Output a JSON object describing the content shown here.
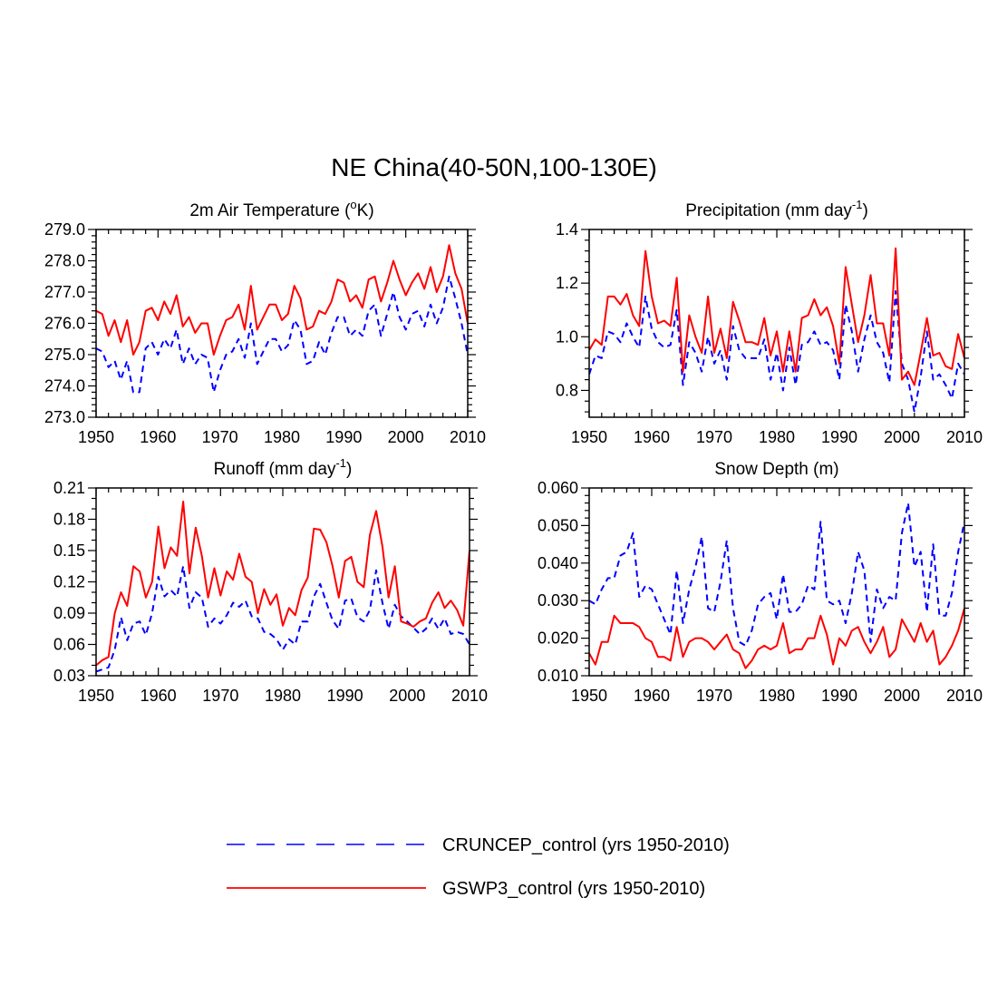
{
  "title": "NE China(40-50N,100-130E)",
  "colors": {
    "cruncep": "#0000ff",
    "gswp3": "#ff0000",
    "axis": "#000000"
  },
  "legend": [
    {
      "label": "CRUNCEP_control (yrs 1950-2010)",
      "color": "#0000ff",
      "dash": true
    },
    {
      "label": "GSWP3_control (yrs 1950-2010)",
      "color": "#ff0000",
      "dash": false
    }
  ],
  "chart_data": [
    {
      "type": "line",
      "title": {
        "main": "2m Air Temperature (",
        "sup": "o",
        "rest": "K)"
      },
      "xlim": [
        1950,
        2010
      ],
      "ylim": [
        273.0,
        279.0
      ],
      "xticks": [
        "1950",
        "1960",
        "1970",
        "1980",
        "1990",
        "2000",
        "2010"
      ],
      "yticks": [
        "273.0",
        "274.0",
        "275.0",
        "276.0",
        "277.0",
        "278.0",
        "279.0"
      ],
      "x_start": 1950,
      "series": [
        {
          "name": "CRUNCEP_control",
          "values": [
            275.2,
            275.1,
            274.6,
            274.8,
            274.2,
            274.8,
            273.8,
            273.8,
            275.2,
            275.4,
            275.0,
            275.5,
            275.2,
            275.8,
            274.7,
            275.2,
            274.7,
            275.0,
            274.9,
            273.8,
            274.5,
            275.0,
            275.1,
            275.5,
            274.9,
            276.0,
            274.7,
            275.1,
            275.5,
            275.5,
            275.1,
            275.3,
            276.1,
            275.8,
            274.7,
            274.8,
            275.4,
            275.0,
            275.7,
            276.2,
            276.2,
            275.6,
            275.8,
            275.6,
            276.4,
            276.6,
            275.6,
            276.3,
            277.0,
            276.2,
            275.8,
            276.3,
            276.4,
            275.9,
            276.6,
            276.0,
            276.5,
            277.5,
            276.8,
            276.0,
            275.0
          ]
        },
        {
          "name": "GSWP3_control",
          "values": [
            276.4,
            276.3,
            275.6,
            276.1,
            275.4,
            276.1,
            275.0,
            275.4,
            276.4,
            276.5,
            276.1,
            276.7,
            276.3,
            276.9,
            275.9,
            276.2,
            275.7,
            276.0,
            276.0,
            275.0,
            275.6,
            276.1,
            276.2,
            276.6,
            275.8,
            277.2,
            275.8,
            276.2,
            276.6,
            276.6,
            276.1,
            276.3,
            277.2,
            276.8,
            275.8,
            275.9,
            276.4,
            276.3,
            276.7,
            277.4,
            277.3,
            276.7,
            276.9,
            276.5,
            277.4,
            277.5,
            276.7,
            277.3,
            278.0,
            277.4,
            276.9,
            277.3,
            277.6,
            277.1,
            277.8,
            277.0,
            277.5,
            278.5,
            277.6,
            277.1,
            276.0
          ]
        }
      ]
    },
    {
      "type": "line",
      "title": {
        "main": "Precipitation (mm day",
        "sup": "-1",
        "rest": ")"
      },
      "xlim": [
        1950,
        2010
      ],
      "ylim": [
        0.7,
        1.4
      ],
      "xticks": [
        "1950",
        "1960",
        "1970",
        "1980",
        "1990",
        "2000",
        "2010"
      ],
      "yticks": [
        "0.8",
        "1.0",
        "1.2",
        "1.4"
      ],
      "x_start": 1950,
      "series": [
        {
          "name": "CRUNCEP_control",
          "values": [
            0.86,
            0.93,
            0.92,
            1.02,
            1.01,
            0.98,
            1.05,
            1.0,
            0.96,
            1.15,
            1.03,
            0.98,
            0.96,
            0.97,
            1.1,
            0.82,
            0.98,
            0.94,
            0.87,
            1.0,
            0.9,
            0.95,
            0.84,
            1.04,
            0.95,
            0.92,
            0.92,
            0.92,
            0.99,
            0.84,
            0.94,
            0.8,
            0.96,
            0.82,
            0.97,
            0.98,
            1.02,
            0.97,
            0.98,
            0.95,
            0.84,
            1.12,
            1.02,
            0.87,
            0.99,
            1.08,
            0.98,
            0.94,
            0.83,
            1.17,
            0.9,
            0.84,
            0.72,
            0.85,
            1.02,
            0.84,
            0.86,
            0.82,
            0.77,
            0.9,
            0.86
          ]
        },
        {
          "name": "GSWP3_control",
          "values": [
            0.95,
            0.99,
            0.97,
            1.15,
            1.15,
            1.12,
            1.16,
            1.08,
            1.04,
            1.32,
            1.15,
            1.05,
            1.06,
            1.04,
            1.22,
            0.87,
            1.08,
            1.0,
            0.94,
            1.15,
            0.94,
            1.03,
            0.92,
            1.13,
            1.06,
            0.98,
            0.98,
            0.97,
            1.07,
            0.93,
            1.02,
            0.87,
            1.02,
            0.87,
            1.07,
            1.08,
            1.14,
            1.08,
            1.11,
            1.04,
            0.9,
            1.26,
            1.12,
            0.98,
            1.08,
            1.23,
            1.05,
            1.05,
            0.93,
            1.33,
            0.84,
            0.87,
            0.82,
            0.94,
            1.07,
            0.93,
            0.94,
            0.89,
            0.88,
            1.01,
            0.92
          ]
        }
      ]
    },
    {
      "type": "line",
      "title": {
        "main": "Runoff (mm day",
        "sup": "-1",
        "rest": ")"
      },
      "xlim": [
        1950,
        2010
      ],
      "ylim": [
        0.03,
        0.21
      ],
      "xticks": [
        "1950",
        "1960",
        "1970",
        "1980",
        "1990",
        "2000",
        "2010"
      ],
      "yticks": [
        "0.03",
        "0.06",
        "0.09",
        "0.12",
        "0.15",
        "0.18",
        "0.21"
      ],
      "x_start": 1950,
      "series": [
        {
          "name": "CRUNCEP_control",
          "values": [
            0.034,
            0.036,
            0.038,
            0.055,
            0.086,
            0.064,
            0.08,
            0.082,
            0.069,
            0.09,
            0.125,
            0.106,
            0.112,
            0.106,
            0.135,
            0.095,
            0.11,
            0.105,
            0.077,
            0.085,
            0.08,
            0.088,
            0.1,
            0.096,
            0.102,
            0.087,
            0.085,
            0.072,
            0.07,
            0.065,
            0.055,
            0.065,
            0.06,
            0.082,
            0.082,
            0.106,
            0.118,
            0.1,
            0.083,
            0.075,
            0.102,
            0.104,
            0.086,
            0.082,
            0.093,
            0.131,
            0.1,
            0.075,
            0.098,
            0.087,
            0.082,
            0.076,
            0.07,
            0.075,
            0.085,
            0.075,
            0.085,
            0.07,
            0.072,
            0.07,
            0.06
          ]
        },
        {
          "name": "GSWP3_control",
          "values": [
            0.04,
            0.045,
            0.048,
            0.09,
            0.11,
            0.097,
            0.135,
            0.13,
            0.105,
            0.12,
            0.173,
            0.133,
            0.153,
            0.145,
            0.197,
            0.128,
            0.172,
            0.145,
            0.105,
            0.133,
            0.107,
            0.13,
            0.122,
            0.147,
            0.125,
            0.12,
            0.09,
            0.113,
            0.098,
            0.108,
            0.078,
            0.095,
            0.088,
            0.112,
            0.124,
            0.171,
            0.17,
            0.158,
            0.135,
            0.105,
            0.14,
            0.144,
            0.12,
            0.115,
            0.165,
            0.188,
            0.154,
            0.105,
            0.135,
            0.082,
            0.08,
            0.077,
            0.082,
            0.085,
            0.1,
            0.11,
            0.095,
            0.102,
            0.093,
            0.078,
            0.15
          ]
        }
      ]
    },
    {
      "type": "line",
      "title": {
        "main": "Snow Depth (m)",
        "sup": "",
        "rest": ""
      },
      "xlim": [
        1950,
        2010
      ],
      "ylim": [
        0.01,
        0.06
      ],
      "xticks": [
        "1950",
        "1960",
        "1970",
        "1980",
        "1990",
        "2000",
        "2010"
      ],
      "yticks": [
        "0.010",
        "0.020",
        "0.030",
        "0.040",
        "0.050",
        "0.060"
      ],
      "x_start": 1950,
      "series": [
        {
          "name": "CRUNCEP_control",
          "values": [
            0.03,
            0.029,
            0.033,
            0.036,
            0.036,
            0.042,
            0.043,
            0.048,
            0.031,
            0.034,
            0.033,
            0.029,
            0.025,
            0.021,
            0.038,
            0.024,
            0.033,
            0.039,
            0.047,
            0.028,
            0.027,
            0.035,
            0.046,
            0.028,
            0.019,
            0.018,
            0.022,
            0.029,
            0.031,
            0.032,
            0.025,
            0.037,
            0.027,
            0.027,
            0.029,
            0.034,
            0.033,
            0.051,
            0.03,
            0.029,
            0.03,
            0.024,
            0.032,
            0.043,
            0.038,
            0.019,
            0.033,
            0.028,
            0.031,
            0.03,
            0.048,
            0.056,
            0.039,
            0.043,
            0.027,
            0.045,
            0.026,
            0.026,
            0.032,
            0.043,
            0.051
          ]
        },
        {
          "name": "GSWP3_control",
          "values": [
            0.016,
            0.013,
            0.019,
            0.019,
            0.026,
            0.024,
            0.024,
            0.024,
            0.023,
            0.02,
            0.019,
            0.015,
            0.015,
            0.014,
            0.023,
            0.015,
            0.019,
            0.02,
            0.02,
            0.019,
            0.017,
            0.019,
            0.021,
            0.017,
            0.016,
            0.012,
            0.014,
            0.017,
            0.018,
            0.017,
            0.018,
            0.024,
            0.016,
            0.017,
            0.017,
            0.02,
            0.02,
            0.026,
            0.021,
            0.013,
            0.02,
            0.018,
            0.022,
            0.023,
            0.019,
            0.016,
            0.019,
            0.023,
            0.015,
            0.017,
            0.025,
            0.022,
            0.019,
            0.024,
            0.019,
            0.022,
            0.013,
            0.015,
            0.018,
            0.022,
            0.028
          ]
        }
      ]
    }
  ]
}
